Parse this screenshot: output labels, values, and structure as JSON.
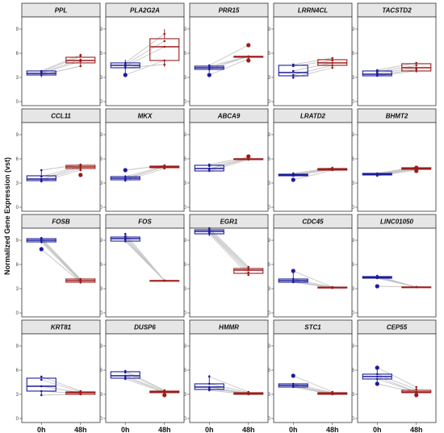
{
  "chart_data": {
    "type": "box",
    "ylabel": "Normalized Gene Expression (vst)",
    "x_categories": [
      "0h",
      "48h"
    ],
    "y_ticks": [
      0,
      3,
      6,
      9
    ],
    "ylim": [
      -0.5,
      10.5
    ],
    "colors": {
      "0h": "#1c1c9c",
      "48h": "#9c1c1c",
      "line": "#c4c4c4",
      "strip": "#e6e6e6"
    },
    "grid": "none",
    "panels": [
      {
        "gene": "PPL",
        "box": [
          [
            3.0,
            3.3,
            3.5,
            3.8,
            3.9
          ],
          [
            4.3,
            4.8,
            5.1,
            5.5,
            5.8
          ]
        ],
        "pairs": [
          [
            3.3,
            4.4
          ],
          [
            3.5,
            5.0
          ],
          [
            3.6,
            5.2
          ],
          [
            3.7,
            5.6
          ],
          [
            3.8,
            5.8
          ]
        ],
        "outliers": [
          [],
          []
        ]
      },
      {
        "gene": "PLA2G2A",
        "box": [
          [
            3.5,
            4.2,
            4.5,
            4.8,
            5.2
          ],
          [
            4.3,
            5.1,
            6.8,
            7.8,
            9.0
          ]
        ],
        "pairs": [
          [
            4.2,
            4.6
          ],
          [
            4.4,
            6.8
          ],
          [
            4.6,
            7.5
          ],
          [
            4.8,
            8.4
          ],
          [
            3.3,
            5.1
          ]
        ],
        "outliers": [
          [
            3.3
          ],
          []
        ]
      },
      {
        "gene": "PRR15",
        "box": [
          [
            3.6,
            4.0,
            4.2,
            4.4,
            4.6
          ],
          [
            5.2,
            5.5,
            5.6,
            5.6,
            5.7
          ]
        ],
        "pairs": [
          [
            3.3,
            5.3
          ],
          [
            4.0,
            5.6
          ],
          [
            4.2,
            5.6
          ],
          [
            4.4,
            5.6
          ],
          [
            4.5,
            7.0
          ]
        ],
        "outliers": [
          [
            3.3
          ],
          [
            5.1,
            7.0
          ]
        ]
      },
      {
        "gene": "LRRN4CL",
        "box": [
          [
            2.8,
            3.2,
            3.6,
            4.5,
            4.6
          ],
          [
            4.2,
            4.5,
            4.8,
            5.2,
            5.4
          ]
        ],
        "pairs": [
          [
            3.0,
            4.2
          ],
          [
            3.3,
            4.5
          ],
          [
            3.8,
            4.8
          ],
          [
            4.4,
            5.1
          ],
          [
            4.6,
            5.4
          ]
        ],
        "outliers": [
          [],
          []
        ]
      },
      {
        "gene": "TACSTD2",
        "box": [
          [
            3.1,
            3.2,
            3.4,
            3.8,
            3.9
          ],
          [
            3.6,
            3.8,
            4.2,
            4.7,
            4.8
          ]
        ],
        "pairs": [
          [
            3.2,
            3.8
          ],
          [
            3.3,
            4.0
          ],
          [
            3.5,
            4.2
          ],
          [
            3.7,
            4.5
          ],
          [
            3.9,
            4.8
          ]
        ],
        "outliers": [
          [],
          []
        ]
      },
      {
        "gene": "CCL11",
        "box": [
          [
            3.1,
            3.3,
            3.5,
            3.9,
            4.6
          ],
          [
            4.5,
            4.8,
            5.0,
            5.2,
            5.4
          ]
        ],
        "pairs": [
          [
            3.2,
            4.6
          ],
          [
            3.4,
            4.8
          ],
          [
            3.5,
            5.0
          ],
          [
            3.8,
            5.1
          ],
          [
            4.6,
            5.3
          ]
        ],
        "outliers": [
          [],
          [
            4.0
          ]
        ]
      },
      {
        "gene": "MKX",
        "box": [
          [
            3.2,
            3.4,
            3.6,
            3.8,
            4.0
          ],
          [
            4.8,
            4.9,
            5.0,
            5.1,
            5.2
          ]
        ],
        "pairs": [
          [
            3.3,
            4.8
          ],
          [
            3.5,
            5.0
          ],
          [
            3.6,
            5.0
          ],
          [
            3.8,
            5.1
          ],
          [
            4.6,
            5.2
          ]
        ],
        "outliers": [
          [
            4.6
          ],
          []
        ]
      },
      {
        "gene": "ABCA9",
        "box": [
          [
            4.4,
            4.5,
            4.8,
            5.2,
            5.3
          ],
          [
            5.8,
            5.9,
            6.0,
            6.0,
            6.3
          ]
        ],
        "pairs": [
          [
            4.5,
            5.9
          ],
          [
            4.7,
            6.0
          ],
          [
            4.8,
            6.0
          ],
          [
            5.1,
            6.0
          ],
          [
            5.3,
            6.2
          ]
        ],
        "outliers": [
          [],
          [
            6.3
          ]
        ]
      },
      {
        "gene": "LRATD2",
        "box": [
          [
            3.8,
            3.9,
            4.0,
            4.1,
            4.2
          ],
          [
            4.5,
            4.6,
            4.7,
            4.8,
            4.9
          ]
        ],
        "pairs": [
          [
            3.4,
            4.6
          ],
          [
            3.9,
            4.7
          ],
          [
            4.0,
            4.7
          ],
          [
            4.1,
            4.8
          ],
          [
            4.2,
            4.9
          ]
        ],
        "outliers": [
          [
            3.4
          ],
          []
        ]
      },
      {
        "gene": "BHMT2",
        "box": [
          [
            3.9,
            4.0,
            4.1,
            4.2,
            4.2
          ],
          [
            4.6,
            4.7,
            4.8,
            4.9,
            5.0
          ]
        ],
        "pairs": [
          [
            3.9,
            4.6
          ],
          [
            4.0,
            4.7
          ],
          [
            4.1,
            4.8
          ],
          [
            4.1,
            4.9
          ],
          [
            4.2,
            5.0
          ]
        ],
        "outliers": [
          [],
          [
            4.5,
            4.9
          ]
        ]
      },
      {
        "gene": "FOSB",
        "box": [
          [
            8.6,
            8.8,
            9.0,
            9.2,
            9.3
          ],
          [
            3.6,
            3.8,
            4.0,
            4.2,
            4.3
          ]
        ],
        "pairs": [
          [
            7.9,
            3.8
          ],
          [
            8.8,
            3.9
          ],
          [
            9.0,
            4.0
          ],
          [
            9.1,
            4.1
          ],
          [
            9.3,
            4.2
          ]
        ],
        "outliers": [
          [
            7.9
          ],
          []
        ]
      },
      {
        "gene": "FOS",
        "box": [
          [
            8.7,
            8.9,
            9.2,
            9.4,
            9.8
          ],
          [
            4.0,
            4.0,
            4.0,
            4.0,
            4.0
          ]
        ],
        "pairs": [
          [
            8.9,
            4.0
          ],
          [
            9.1,
            4.0
          ],
          [
            9.3,
            4.0
          ],
          [
            9.5,
            4.0
          ],
          [
            9.8,
            4.0
          ]
        ],
        "outliers": [
          [],
          []
        ]
      },
      {
        "gene": "EGR1",
        "box": [
          [
            9.5,
            9.8,
            10.1,
            10.3,
            10.5
          ],
          [
            4.6,
            4.9,
            5.3,
            5.5,
            5.7
          ]
        ],
        "pairs": [
          [
            9.8,
            4.7
          ],
          [
            10.0,
            5.0
          ],
          [
            10.1,
            5.3
          ],
          [
            10.3,
            5.5
          ],
          [
            10.5,
            5.7
          ]
        ],
        "outliers": [
          [],
          []
        ]
      },
      {
        "gene": "CDC45",
        "box": [
          [
            3.7,
            3.8,
            4.0,
            4.2,
            5.2
          ],
          [
            3.1,
            3.1,
            3.1,
            3.2,
            3.2
          ]
        ],
        "pairs": [
          [
            3.8,
            3.1
          ],
          [
            3.9,
            3.1
          ],
          [
            4.0,
            3.1
          ],
          [
            4.2,
            3.2
          ],
          [
            5.2,
            3.2
          ]
        ],
        "outliers": [
          [
            5.2
          ],
          []
        ]
      },
      {
        "gene": "LINC01050",
        "box": [
          [
            4.2,
            4.3,
            4.4,
            4.5,
            4.6
          ],
          [
            3.2,
            3.2,
            3.2,
            3.2,
            3.2
          ]
        ],
        "pairs": [
          [
            3.3,
            3.2
          ],
          [
            4.3,
            3.2
          ],
          [
            4.4,
            3.2
          ],
          [
            4.5,
            3.2
          ],
          [
            4.6,
            3.2
          ]
        ],
        "outliers": [
          [
            3.3
          ],
          []
        ]
      },
      {
        "gene": "KRT81",
        "box": [
          [
            2.9,
            3.4,
            4.0,
            5.0,
            5.2
          ],
          [
            2.9,
            3.0,
            3.2,
            3.3,
            3.4
          ]
        ],
        "pairs": [
          [
            2.9,
            3.0
          ],
          [
            3.4,
            3.1
          ],
          [
            4.0,
            3.2
          ],
          [
            4.8,
            3.3
          ],
          [
            5.2,
            3.4
          ]
        ],
        "outliers": [
          [],
          []
        ]
      },
      {
        "gene": "DUSP6",
        "box": [
          [
            4.8,
            5.0,
            5.3,
            5.8,
            5.9
          ],
          [
            3.1,
            3.2,
            3.3,
            3.4,
            3.5
          ]
        ],
        "pairs": [
          [
            4.9,
            3.2
          ],
          [
            5.1,
            3.3
          ],
          [
            5.3,
            3.3
          ],
          [
            5.7,
            3.4
          ],
          [
            5.9,
            3.5
          ]
        ],
        "outliers": [
          [],
          [
            2.9
          ]
        ]
      },
      {
        "gene": "HMMR",
        "box": [
          [
            3.4,
            3.6,
            3.9,
            4.3,
            5.4
          ],
          [
            2.9,
            3.0,
            3.1,
            3.2,
            3.3
          ]
        ],
        "pairs": [
          [
            3.5,
            3.0
          ],
          [
            3.7,
            3.1
          ],
          [
            3.9,
            3.1
          ],
          [
            4.3,
            3.2
          ],
          [
            5.2,
            3.3
          ]
        ],
        "outliers": [
          [],
          []
        ]
      },
      {
        "gene": "STC1",
        "box": [
          [
            3.8,
            3.9,
            4.1,
            4.3,
            4.4
          ],
          [
            2.9,
            3.0,
            3.1,
            3.2,
            3.3
          ]
        ],
        "pairs": [
          [
            3.9,
            3.0
          ],
          [
            4.0,
            3.1
          ],
          [
            4.1,
            3.1
          ],
          [
            4.3,
            3.2
          ],
          [
            5.3,
            3.3
          ]
        ],
        "outliers": [
          [
            5.3
          ],
          []
        ]
      },
      {
        "gene": "CEP55",
        "box": [
          [
            4.3,
            4.9,
            5.2,
            5.5,
            6.3
          ],
          [
            3.1,
            3.2,
            3.3,
            3.5,
            3.9
          ]
        ],
        "pairs": [
          [
            4.3,
            3.2
          ],
          [
            4.9,
            3.3
          ],
          [
            5.2,
            3.3
          ],
          [
            5.5,
            3.6
          ],
          [
            6.3,
            3.9
          ]
        ],
        "outliers": [
          [
            4.3,
            6.3
          ],
          [
            2.9
          ]
        ]
      }
    ]
  }
}
